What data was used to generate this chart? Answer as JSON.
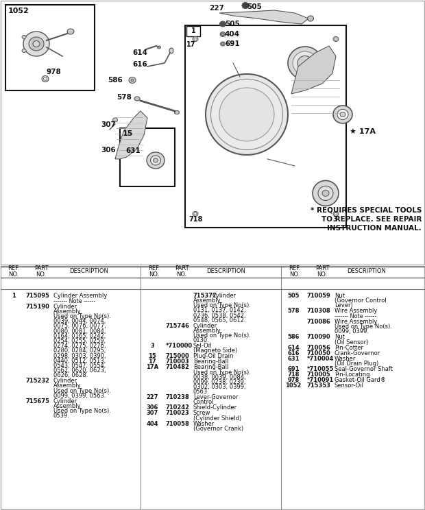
{
  "bg_color": "#f0f0e8",
  "white": "#ffffff",
  "black": "#111111",
  "gray": "#888888",
  "lgray": "#cccccc",
  "dgray": "#555555",
  "star_note": "* REQUIRES SPECIAL TOOLS\nTO REPLACE. SEE REPAIR\nINSTRUCTION MANUAL.",
  "entries_col1": [
    [
      "1",
      "715095",
      [
        "Cylinder Assembly"
      ],
      false
    ],
    [
      "",
      "",
      [
        "------- Note ------"
      ],
      true
    ],
    [
      "",
      "715190",
      [
        "Cylinder",
        "Assembly",
        "Used on Type No(s).",
        "0039, 0044, 0074,",
        "0075, 0076, 0077,",
        "0080, 0081, 0084,",
        "0164, 0165, 0242,",
        "0254, 0255, 0259,",
        "0274, 0275, 0276,",
        "0280, 0284, 0295,",
        "0298, 0303, 0390,",
        "0440, 0512, 0513,",
        "0543, 0547, 0554,",
        "0562, 0620, 0623,",
        "0626, 0628."
      ],
      false
    ],
    [
      "",
      "715232",
      [
        "Cylinder",
        "Assembly",
        "Used on Type No(s).",
        "0099, 0399, 0563."
      ],
      false
    ],
    [
      "",
      "715675",
      [
        "Cylinder",
        "Assembly",
        "Used on Type No(s).",
        "0539."
      ],
      false
    ]
  ],
  "entries_col2": [
    [
      "",
      "",
      [
        "715377 Cylinder",
        "Assembly",
        "Used on Type No(s).",
        "0131, 0137, 0142,",
        "0236, 0538, 0542,",
        "0548, 0565, 0612."
      ],
      false
    ],
    [
      "",
      "715746",
      [
        "Cylinder",
        "Assembly",
        "Used on Type No(s).",
        "0130."
      ],
      false
    ],
    [
      "3",
      "*710000",
      [
        "Sel-Oil",
        "(Magneto Side)"
      ],
      false
    ],
    [
      "15",
      "715000",
      [
        "Plug-Oil Drain"
      ],
      false
    ],
    [
      "17",
      "710003",
      [
        "Bearing-Ball"
      ],
      false
    ],
    [
      "17A",
      "710482",
      [
        "Bearing-Ball",
        "Used on Type No(s).",
        "0038, 0039, 0084,",
        "0099, 0238, 0239,",
        "0302, 0303, 0399,",
        "0563."
      ],
      false
    ],
    [
      "227",
      "710238",
      [
        "Lever-Governor",
        "Control"
      ],
      false
    ],
    [
      "306",
      "710242",
      [
        "Shield-Cylinder"
      ],
      false
    ],
    [
      "307",
      "710023",
      [
        "Screw",
        "(Cylinder Shield)"
      ],
      false
    ],
    [
      "404",
      "710058",
      [
        "Washer",
        "(Governor Crank)"
      ],
      false
    ]
  ],
  "entries_col3": [
    [
      "505",
      "710059",
      [
        "Nut",
        "(Governor Control",
        "Lever)"
      ],
      false
    ],
    [
      "578",
      "710308",
      [
        "Wire Assembly"
      ],
      false
    ],
    [
      "",
      "",
      [
        "------- Note ------"
      ],
      true
    ],
    [
      "",
      "710086",
      [
        "Wire Assembly",
        "Used on Type No(s).",
        "0099, 0399."
      ],
      false
    ],
    [
      "586",
      "710090",
      [
        "Nut",
        "(Oil Sensor)"
      ],
      false
    ],
    [
      "614",
      "710056",
      [
        "Pin-Cotter"
      ],
      false
    ],
    [
      "616",
      "710050",
      [
        "Crank-Governor"
      ],
      false
    ],
    [
      "631",
      "*710004",
      [
        "Washer",
        "(Oil Drain Plug)"
      ],
      false
    ],
    [
      "691",
      "*710055",
      [
        "Seal-Governor Shaft"
      ],
      false
    ],
    [
      "718",
      "710005",
      [
        "Pin-Locating"
      ],
      false
    ],
    [
      "978",
      "*710091",
      [
        "Gasket-Oil Gard®"
      ],
      false
    ],
    [
      "1052",
      "715353",
      [
        "Sensor-Oil"
      ],
      false
    ]
  ]
}
